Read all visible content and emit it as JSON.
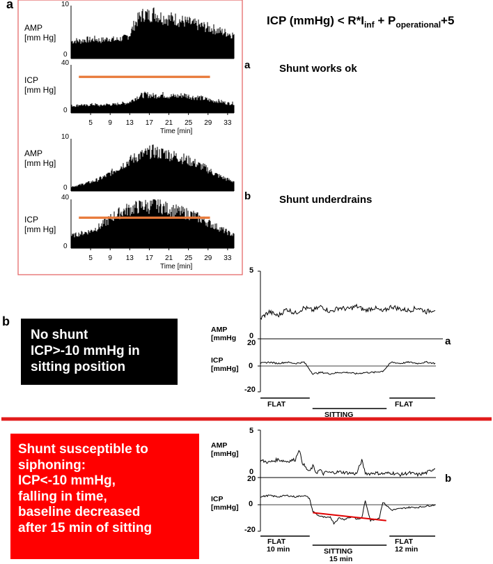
{
  "panel_a": {
    "label": "a",
    "formula": {
      "lhs": "ICP (mmHg) < R*I",
      "sub1": "inf",
      "mid": " + P",
      "sub2": "operational",
      "rhs": "+5"
    },
    "notes": {
      "sub_a": "a",
      "sub_b": "b",
      "ok": "Shunt works ok",
      "under": "Shunt underdrains"
    }
  },
  "panel_b": {
    "label": "b",
    "black_box_lines": [
      "No shunt",
      "ICP>-10 mmHg in",
      "sitting position"
    ],
    "red_box_lines": [
      "Shunt susceptible to",
      "siphoning:",
      "ICP<-10 mmHg,",
      "falling in time,",
      "baseline decreased",
      "after 15 min of sitting"
    ],
    "sub_a": "a",
    "sub_b": "b"
  },
  "colors": {
    "threshold": "#e87a3a",
    "frame": "#e35d5d",
    "divider": "#e21b1b",
    "trend": "#e00000",
    "black_box": "#000000",
    "red_box": "#ff0000"
  },
  "chart_data": [
    {
      "type": "area",
      "id": "a-top",
      "series": [
        {
          "ylabel": "AMP\n[mm Hg]",
          "ylim": [
            0,
            10
          ],
          "yticks": [
            "10",
            "0"
          ],
          "x": [
            1,
            2,
            3,
            4,
            5,
            6,
            7,
            8,
            9,
            10,
            11,
            12,
            13,
            14,
            15,
            16,
            17,
            18,
            19,
            20,
            21,
            22,
            23,
            24,
            25,
            26,
            27,
            28,
            29,
            30,
            31,
            32,
            33,
            34
          ],
          "values": [
            3.2,
            3.4,
            3.3,
            3.6,
            3.5,
            3.7,
            3.4,
            3.6,
            3.8,
            3.5,
            3.7,
            3.9,
            4.5,
            6.5,
            7.8,
            8.4,
            8.1,
            8.6,
            8.0,
            7.7,
            7.5,
            7.6,
            7.2,
            7.0,
            6.8,
            6.5,
            6.3,
            6.1,
            5.8,
            5.6,
            5.3,
            5.0,
            4.8,
            4.5
          ]
        },
        {
          "ylabel": "ICP\n[mm Hg]",
          "ylim": [
            0,
            40
          ],
          "yticks": [
            "40",
            "0"
          ],
          "threshold": 30,
          "x": [
            1,
            2,
            3,
            4,
            5,
            6,
            7,
            8,
            9,
            10,
            11,
            12,
            13,
            14,
            15,
            16,
            17,
            18,
            19,
            20,
            21,
            22,
            23,
            24,
            25,
            26,
            27,
            28,
            29,
            30,
            31,
            32,
            33,
            34
          ],
          "values": [
            6,
            6,
            7,
            6,
            7,
            7,
            6,
            7,
            7,
            7,
            8,
            8,
            9,
            12,
            14,
            15,
            15,
            14,
            15,
            15,
            14,
            14,
            14,
            15,
            14,
            13,
            13,
            12,
            11,
            10,
            10,
            9,
            8,
            8
          ]
        }
      ],
      "xticks": [
        "5",
        "9",
        "13",
        "17",
        "21",
        "25",
        "29",
        "33"
      ],
      "xlabel": "Time [min]"
    },
    {
      "type": "area",
      "id": "a-bottom",
      "series": [
        {
          "ylabel": "AMP\n[mm Hg]",
          "ylim": [
            0,
            10
          ],
          "yticks": [
            "10",
            "0"
          ],
          "x": [
            1,
            2,
            3,
            4,
            5,
            6,
            7,
            8,
            9,
            10,
            11,
            12,
            13,
            14,
            15,
            16,
            17,
            18,
            19,
            20,
            21,
            22,
            23,
            24,
            25,
            26,
            27,
            28,
            29,
            30,
            31,
            32,
            33,
            34
          ],
          "values": [
            0.8,
            1.0,
            1.2,
            1.5,
            1.7,
            2.0,
            2.4,
            2.8,
            3.4,
            4.0,
            4.6,
            5.2,
            5.8,
            6.3,
            6.8,
            7.0,
            7.4,
            7.6,
            7.2,
            7.3,
            7.0,
            6.7,
            6.5,
            6.2,
            5.8,
            5.5,
            5.0,
            4.6,
            4.1,
            3.5,
            3.0,
            2.6,
            2.2,
            1.9
          ]
        },
        {
          "ylabel": "ICP\n[mm Hg]",
          "ylim": [
            0,
            40
          ],
          "yticks": [
            "40",
            "0"
          ],
          "threshold": 25,
          "x": [
            1,
            2,
            3,
            4,
            5,
            6,
            7,
            8,
            9,
            10,
            11,
            12,
            13,
            14,
            15,
            16,
            17,
            18,
            19,
            20,
            21,
            22,
            23,
            24,
            25,
            26,
            27,
            28,
            29,
            30,
            31,
            32,
            33,
            34
          ],
          "values": [
            10,
            11,
            12,
            13,
            14,
            16,
            18,
            21,
            24,
            27,
            29,
            31,
            32,
            33,
            34,
            35,
            34,
            36,
            35,
            33,
            32,
            31,
            30,
            29,
            28,
            27,
            25,
            23,
            21,
            19,
            17,
            15,
            13,
            11
          ]
        }
      ],
      "xticks": [
        "5",
        "9",
        "13",
        "17",
        "21",
        "25",
        "29",
        "33"
      ],
      "xlabel": "Time [min]"
    },
    {
      "type": "line",
      "id": "b-top",
      "series": [
        {
          "ylabel": "AMP\n[mmHg",
          "ylim": [
            0,
            5
          ],
          "yticks": [
            "5",
            "0"
          ],
          "x": [
            0,
            5,
            10,
            15,
            20,
            25,
            30,
            35,
            40,
            45,
            50,
            55,
            60,
            65,
            70,
            75,
            80,
            85,
            90,
            95,
            100
          ],
          "values": [
            1.5,
            2.0,
            1.7,
            2.2,
            1.9,
            2.3,
            2.1,
            2.4,
            2.0,
            2.3,
            2.2,
            2.4,
            2.1,
            2.3,
            2.0,
            2.4,
            2.2,
            2.1,
            2.3,
            2.0,
            2.2
          ]
        },
        {
          "ylabel": "ICP\n[mmHg]",
          "ylim": [
            -20,
            20
          ],
          "yticks": [
            "20",
            "0",
            "-20"
          ],
          "x": [
            0,
            5,
            10,
            15,
            20,
            25,
            30,
            35,
            40,
            45,
            50,
            55,
            60,
            65,
            70,
            75,
            80,
            85,
            90,
            95,
            100
          ],
          "values": [
            2,
            3,
            2,
            3,
            2,
            3,
            -6,
            -5,
            -6,
            -5,
            -5,
            -6,
            -5,
            -5,
            -4,
            3,
            2,
            3,
            2,
            3,
            2
          ]
        }
      ],
      "segments": [
        {
          "label": "FLAT",
          "x0": 0,
          "x1": 29
        },
        {
          "label": "SITTING",
          "x0": 29,
          "x1": 73
        },
        {
          "label": "FLAT",
          "x0": 73,
          "x1": 100
        }
      ]
    },
    {
      "type": "line",
      "id": "b-bottom",
      "series": [
        {
          "ylabel": "AMP\n[mmHg]",
          "ylim": [
            0,
            5
          ],
          "yticks": [
            "5",
            "0"
          ],
          "x": [
            0,
            5,
            10,
            15,
            20,
            22,
            24,
            26,
            28,
            30,
            32,
            34,
            36,
            38,
            40,
            45,
            50,
            55,
            58,
            60,
            62,
            65,
            70,
            75,
            80,
            85,
            90,
            95,
            100
          ],
          "values": [
            1.8,
            1.6,
            1.9,
            1.7,
            1.9,
            3.0,
            1.6,
            1.0,
            0.6,
            1.2,
            0.5,
            0.8,
            0.4,
            0.6,
            0.5,
            0.6,
            0.5,
            0.4,
            1.8,
            0.5,
            0.4,
            0.5,
            0.4,
            0.5,
            0.3,
            0.5,
            0.3,
            0.5,
            1.0
          ]
        },
        {
          "ylabel": "ICP\n[mmHg]",
          "ylim": [
            -20,
            20
          ],
          "yticks": [
            "20",
            "0",
            "-20"
          ],
          "x": [
            0,
            5,
            10,
            15,
            20,
            25,
            28,
            30,
            33,
            35,
            38,
            40,
            42,
            45,
            48,
            50,
            53,
            55,
            58,
            60,
            63,
            65,
            68,
            70,
            75,
            80,
            85,
            90,
            95,
            100
          ],
          "values": [
            6,
            7,
            6,
            7,
            6,
            7,
            5,
            -5,
            -8,
            -9,
            -10,
            -9,
            -14,
            -10,
            -11,
            -10,
            -9,
            -11,
            -10,
            3,
            -12,
            -11,
            -10,
            2,
            -4,
            -3,
            -2,
            -2,
            -1,
            0
          ]
        }
      ],
      "trend": {
        "x": [
          30,
          72
        ],
        "y": [
          -6,
          -12
        ]
      },
      "segments": [
        {
          "label": "FLAT",
          "sublabel": "10 min",
          "x0": 0,
          "x1": 29
        },
        {
          "label": "SITTING",
          "sublabel": "15 min",
          "x0": 29,
          "x1": 73
        },
        {
          "label": "FLAT",
          "sublabel": "12 min",
          "x0": 73,
          "x1": 100
        }
      ]
    }
  ]
}
